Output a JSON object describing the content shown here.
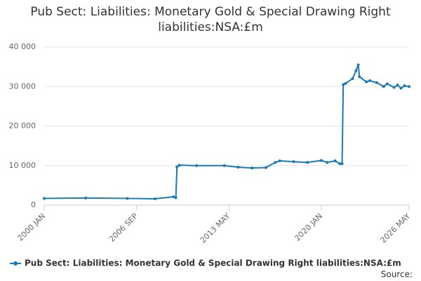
{
  "chart_data": {
    "type": "line",
    "title": "Pub Sect: Liabilities: Monetary Gold & Special Drawing Right liabilities:NSA:£m",
    "source": "Source:",
    "x": [
      "2000 JAN",
      "2003 JAN",
      "2006 JAN",
      "2008 JAN",
      "2009 MAY",
      "2009 JUL",
      "2009 AUG",
      "2009 OCT",
      "2011 JAN",
      "2013 JAN",
      "2014 JAN",
      "2015 JAN",
      "2016 JAN",
      "2016 SEP",
      "2017 JAN",
      "2018 JAN",
      "2019 JAN",
      "2020 JAN",
      "2020 JUN",
      "2021 JAN",
      "2021 MAY",
      "2021 JUL",
      "2021 AUG",
      "2021 OCT",
      "2022 APR",
      "2022 JUL",
      "2022 SEP",
      "2022 OCT",
      "2023 APR",
      "2023 JUL",
      "2024 JAN",
      "2024 JUL",
      "2024 OCT",
      "2025 APR",
      "2025 JUL",
      "2025 OCT",
      "2026 JAN",
      "2026 MAY"
    ],
    "series": [
      {
        "name": "Pub Sect: Liabilities: Monetary Gold & Special Drawing Right liabilities:NSA:£m",
        "color": "#1a7ab5",
        "values": [
          1700,
          1800,
          1700,
          1600,
          2100,
          1900,
          9700,
          10100,
          10000,
          10000,
          9600,
          9400,
          9500,
          10800,
          11200,
          11000,
          10800,
          11300,
          10800,
          11200,
          10500,
          10500,
          30500,
          30800,
          32000,
          34000,
          35500,
          32500,
          31200,
          31500,
          31000,
          30000,
          30700,
          29800,
          30400,
          29600,
          30200,
          30000
        ]
      }
    ],
    "xlim": [
      "2000 JAN",
      "2026 MAY"
    ],
    "xticks": [
      "2000 JAN",
      "2006 SEP",
      "2013 MAY",
      "2020 JAN",
      "2026 MAY"
    ],
    "ylim": [
      0,
      40000
    ],
    "yticks": [
      0,
      {
        "value": 10000,
        "label": "10 000"
      },
      {
        "value": 20000,
        "label": "20 000"
      },
      {
        "value": 30000,
        "label": "30 000"
      },
      {
        "value": 40000,
        "label": "40 000"
      }
    ],
    "grid": true
  }
}
